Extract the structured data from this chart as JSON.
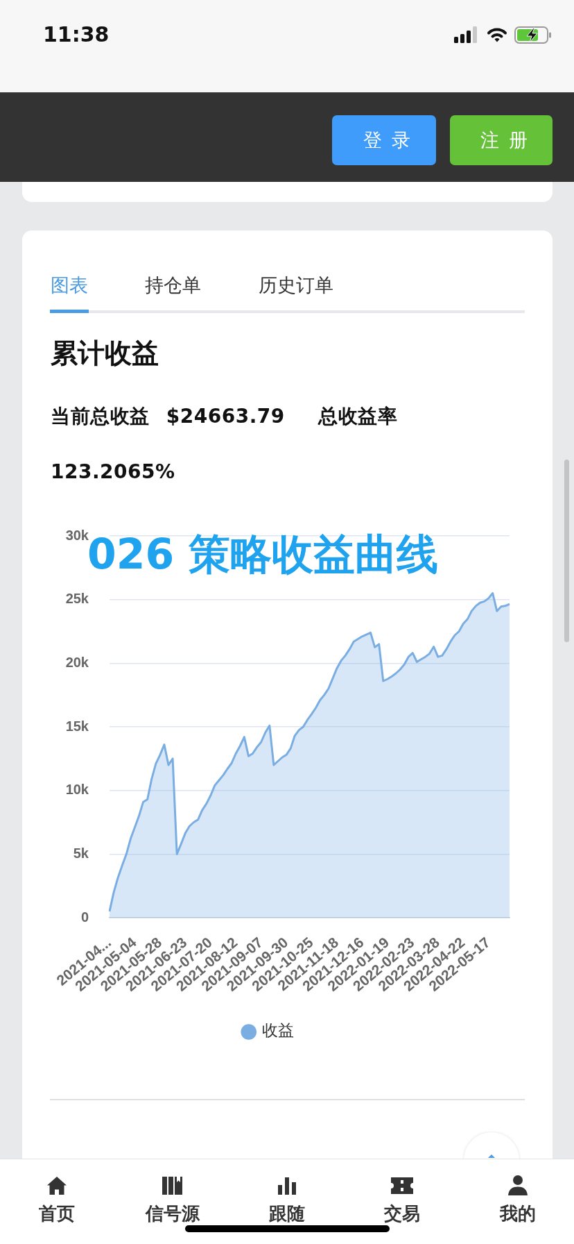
{
  "chart_data": {
    "type": "area",
    "title": "累计收益",
    "annotations": [
      "11:38",
      "登录",
      "注册",
      "图表",
      "持仓单",
      "历史订单",
      "当前总收益 $24663.79",
      "总收益率",
      "123.2065%",
      "026 策略收益曲线",
      "首页",
      "信号源",
      "跟随",
      "交易",
      "我的"
    ],
    "categories": [
      "2021-04...",
      null,
      null,
      null,
      null,
      null,
      "2021-05-04",
      null,
      null,
      null,
      null,
      null,
      "2021-05-28",
      null,
      null,
      null,
      null,
      null,
      "2021-06-23",
      null,
      null,
      null,
      null,
      null,
      "2021-07-20",
      null,
      null,
      null,
      null,
      null,
      "2021-08-12",
      null,
      null,
      null,
      null,
      null,
      "2021-09-07",
      null,
      null,
      null,
      null,
      null,
      "2021-09-30",
      null,
      null,
      null,
      null,
      null,
      "2021-10-25",
      null,
      null,
      null,
      null,
      null,
      "2021-11-18",
      null,
      null,
      null,
      null,
      null,
      "2021-12-16",
      null,
      null,
      null,
      null,
      null,
      "2022-01-19",
      null,
      null,
      null,
      null,
      null,
      "2022-02-23",
      null,
      null,
      null,
      null,
      null,
      "2022-03-28",
      null,
      null,
      null,
      null,
      null,
      "2022-04-22",
      null,
      null,
      null,
      null,
      null,
      "2022-05-17",
      null,
      null,
      null,
      null,
      null
    ],
    "series": [
      {
        "name": "收益",
        "color": "#7aaee3",
        "values": [
          500,
          2000,
          3150,
          4100,
          5000,
          6200,
          7100,
          8000,
          9100,
          9300,
          10900,
          12100,
          12800,
          13600,
          12000,
          12500,
          5000,
          5800,
          6650,
          7200,
          7500,
          7700,
          8450,
          8950,
          9600,
          10400,
          10800,
          11200,
          11700,
          12150,
          12900,
          13500,
          14200,
          12700,
          12900,
          13400,
          13800,
          14550,
          15100,
          12000,
          12300,
          12600,
          12800,
          13300,
          14300,
          14750,
          15000,
          15550,
          16000,
          16500,
          17100,
          17500,
          18000,
          18800,
          19600,
          20200,
          20600,
          21100,
          21700,
          21900,
          22100,
          22250,
          22400,
          21250,
          21500,
          18600,
          18750,
          18950,
          19200,
          19500,
          19900,
          20500,
          20800,
          20100,
          20300,
          20500,
          20750,
          21300,
          20500,
          20600,
          21100,
          21700,
          22200,
          22500,
          23100,
          23450,
          24100,
          24500,
          24750,
          24850,
          25100,
          25500,
          24100,
          24450,
          24500,
          24650
        ]
      }
    ],
    "ylim": [
      0,
      30000
    ],
    "yticks": [
      {
        "value": 0,
        "label": "0"
      },
      {
        "value": 5000,
        "label": "5k"
      },
      {
        "value": 10000,
        "label": "10k"
      },
      {
        "value": 15000,
        "label": "15k"
      },
      {
        "value": 20000,
        "label": "20k"
      },
      {
        "value": 25000,
        "label": "25k"
      },
      {
        "value": 30000,
        "label": "30k"
      }
    ],
    "grid": "y",
    "legend": "bottom"
  }
}
